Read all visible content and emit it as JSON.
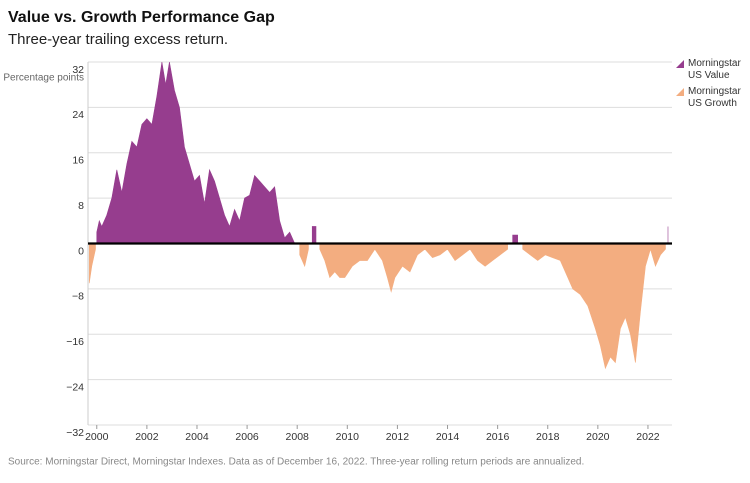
{
  "chart_data": {
    "type": "area",
    "title": "Value vs. Growth Performance Gap",
    "subtitle": "Three-year trailing excess return.",
    "y_label": "Percentage points",
    "source": "Source: Morningstar Direct, Morningstar Indexes. Data as of December 16, 2022. Three-year rolling return periods are annualized.",
    "x": [
      1999.7,
      1999.8,
      1999.95,
      2000.0,
      2000.1,
      2000.2,
      2000.4,
      2000.6,
      2000.8,
      2001.0,
      2001.2,
      2001.4,
      2001.6,
      2001.8,
      2002.0,
      2002.2,
      2002.4,
      2002.6,
      2002.75,
      2002.9,
      2003.1,
      2003.3,
      2003.5,
      2003.7,
      2003.9,
      2004.1,
      2004.3,
      2004.5,
      2004.7,
      2004.9,
      2005.1,
      2005.3,
      2005.5,
      2005.7,
      2005.9,
      2006.1,
      2006.3,
      2006.5,
      2006.7,
      2006.9,
      2007.1,
      2007.3,
      2007.5,
      2007.7,
      2007.9,
      2008.1,
      2008.3,
      2008.45,
      2008.6,
      2008.75,
      2008.9,
      2009.1,
      2009.3,
      2009.5,
      2009.7,
      2009.9,
      2010.2,
      2010.5,
      2010.8,
      2011.1,
      2011.4,
      2011.6,
      2011.75,
      2011.9,
      2012.2,
      2012.5,
      2012.8,
      2013.1,
      2013.4,
      2013.7,
      2014.0,
      2014.3,
      2014.6,
      2014.9,
      2015.2,
      2015.5,
      2015.8,
      2016.1,
      2016.4,
      2016.6,
      2016.8,
      2017.0,
      2017.3,
      2017.6,
      2017.9,
      2018.2,
      2018.5,
      2018.8,
      2019.0,
      2019.3,
      2019.6,
      2019.9,
      2020.1,
      2020.3,
      2020.5,
      2020.7,
      2020.9,
      2021.1,
      2021.3,
      2021.5,
      2021.7,
      2021.9,
      2022.1,
      2022.3,
      2022.5,
      2022.7,
      2022.8
    ],
    "series": [
      {
        "name": "Morningstar US Value",
        "color": "#963d8e",
        "values": [
          null,
          null,
          null,
          2,
          4,
          3,
          5,
          8,
          13,
          9,
          14,
          18,
          17,
          21,
          22,
          21,
          26,
          32,
          28,
          32,
          27,
          24,
          17,
          14,
          11,
          12,
          7,
          13,
          11,
          8,
          5,
          3,
          6,
          4,
          8,
          8.5,
          12,
          11,
          10,
          9,
          10,
          4,
          1,
          2,
          0,
          null,
          null,
          null,
          3,
          3,
          null,
          null,
          null,
          null,
          null,
          null,
          null,
          null,
          null,
          null,
          null,
          null,
          null,
          null,
          null,
          null,
          null,
          null,
          null,
          null,
          null,
          null,
          null,
          null,
          null,
          null,
          null,
          null,
          null,
          1.5,
          1.5,
          null,
          null,
          null,
          null,
          null,
          null,
          null,
          null,
          null,
          null,
          null,
          null,
          null,
          null,
          null,
          null,
          null,
          null,
          null,
          null,
          null,
          null,
          null,
          null,
          null,
          3
        ]
      },
      {
        "name": "Morningstar US Growth",
        "color": "#f3ad80",
        "values": [
          -7,
          -4,
          -1,
          null,
          null,
          null,
          null,
          null,
          null,
          null,
          null,
          null,
          null,
          null,
          null,
          null,
          null,
          null,
          null,
          null,
          null,
          null,
          null,
          null,
          null,
          null,
          null,
          null,
          null,
          null,
          null,
          null,
          null,
          null,
          null,
          null,
          null,
          null,
          null,
          null,
          null,
          null,
          null,
          null,
          null,
          -2,
          -4,
          -1,
          null,
          null,
          -1,
          -3,
          -6,
          -5,
          -6,
          -6,
          -4,
          -3,
          -3,
          -1,
          -3,
          -6,
          -8.5,
          -6,
          -4,
          -5,
          -2,
          -1,
          -2.5,
          -2,
          -1,
          -3,
          -2,
          -1,
          -3,
          -4,
          -3,
          -2,
          -1,
          null,
          null,
          -1,
          -2,
          -3,
          -2,
          -2.5,
          -3,
          -6,
          -8,
          -9,
          -11,
          -15,
          -18,
          -22,
          -20,
          -21,
          -15,
          -13,
          -16,
          -21,
          -12,
          -4,
          -1,
          -4,
          -2,
          -1,
          null
        ]
      }
    ],
    "xlim": [
      1999.65,
      2022.96
    ],
    "xticks": [
      2000,
      2002,
      2004,
      2006,
      2008,
      2010,
      2012,
      2014,
      2016,
      2018,
      2020,
      2022
    ],
    "ylim": [
      -32,
      32
    ],
    "yticks": [
      32,
      24,
      16,
      8,
      0,
      {
        "value": -8,
        "label": "−8"
      },
      {
        "value": -16,
        "label": "−16"
      },
      {
        "value": -24,
        "label": "−24"
      },
      {
        "value": -32,
        "label": "−32"
      }
    ],
    "grid": true
  }
}
